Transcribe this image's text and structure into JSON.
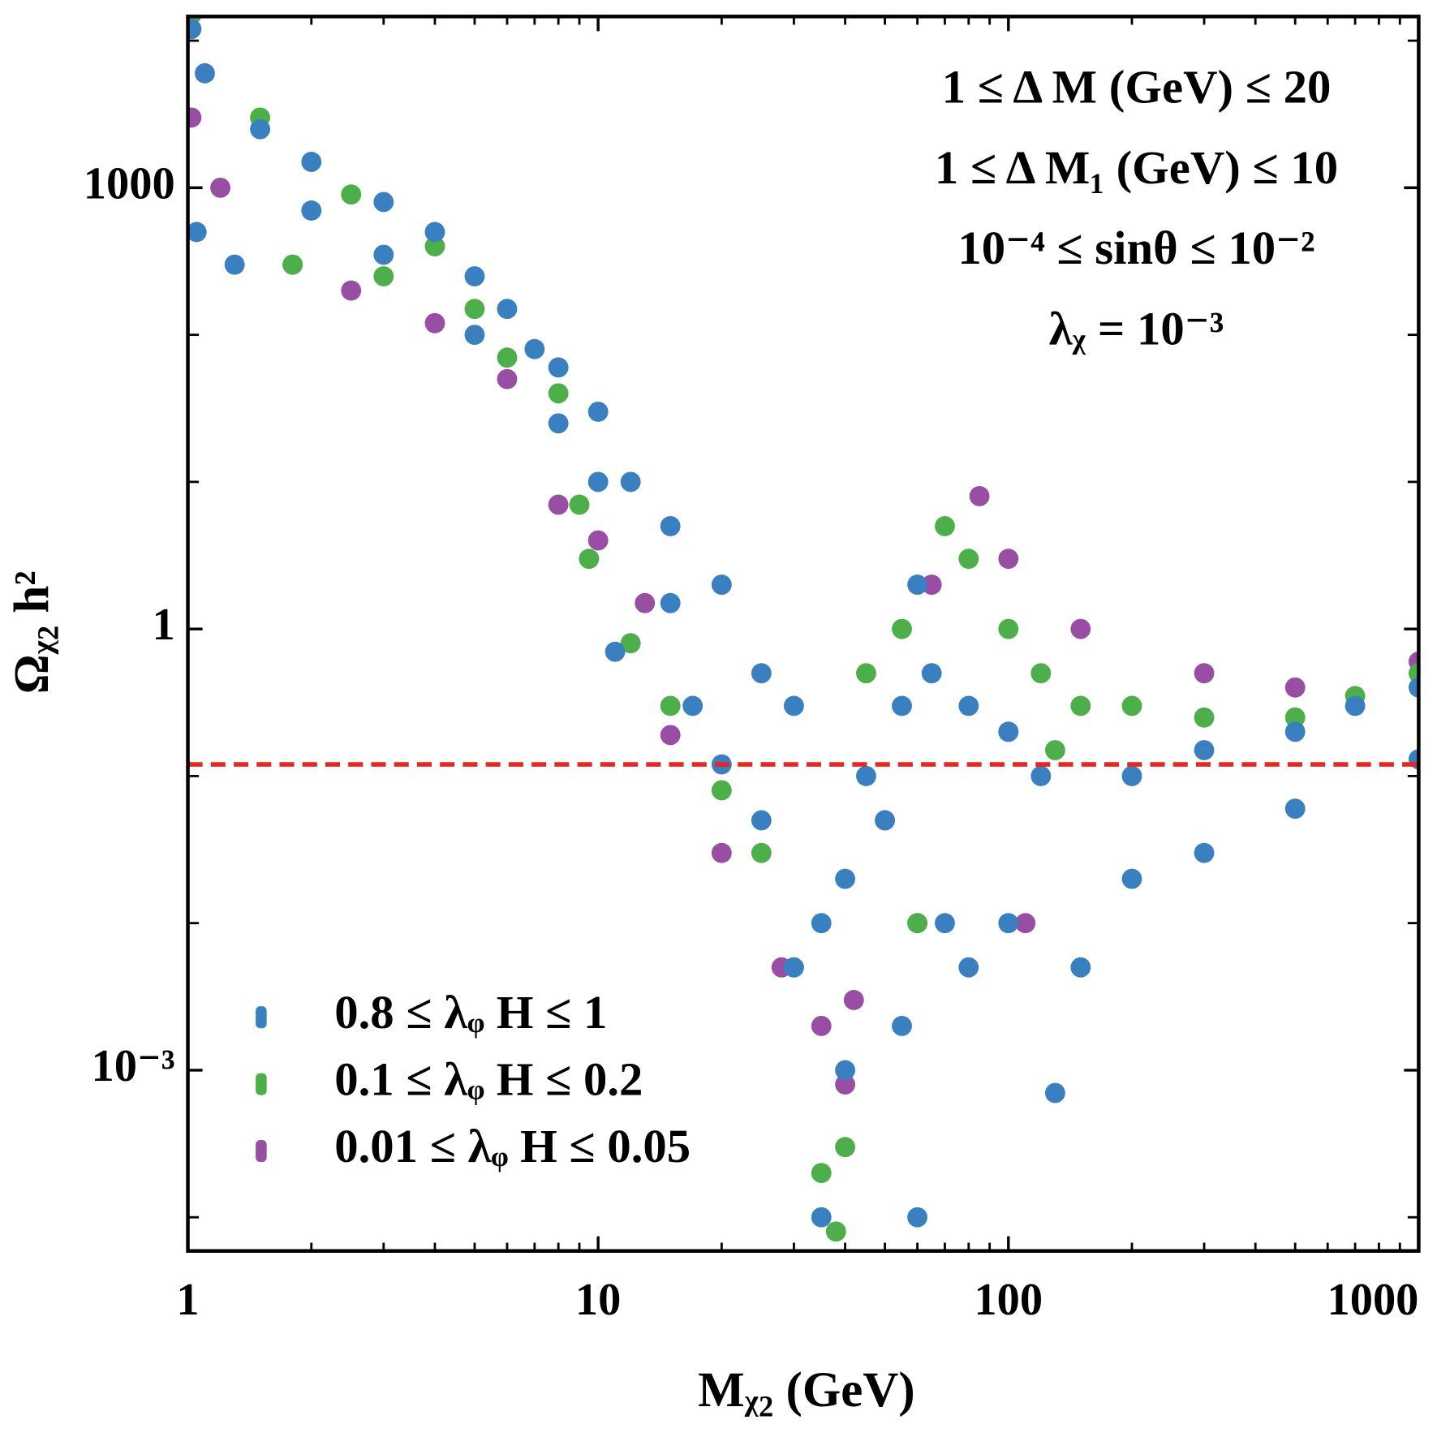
{
  "chart_data": {
    "type": "scatter",
    "xlabel": "Mᵪ₂ (GeV)",
    "ylabel": "Ωᵪ₂ h²",
    "log_x": true,
    "log_y": true,
    "xlim": [
      1,
      1000
    ],
    "ylim": [
      5.9e-05,
      14600
    ],
    "xticks": [
      1,
      10,
      100,
      1000
    ],
    "xminorticks": [
      2,
      3,
      4,
      5,
      6,
      7,
      8,
      9,
      20,
      30,
      40,
      50,
      60,
      70,
      80,
      90,
      200,
      300,
      400,
      500,
      600,
      700,
      800,
      900
    ],
    "yticks": [
      1000,
      1,
      {
        "value": 0.001,
        "label": "10⁻³"
      }
    ],
    "yminorticks": [
      0.0001,
      0.01,
      0.1,
      10,
      100,
      10000
    ],
    "legend": "lower left",
    "annotations": [
      "1 ≤ Δ M (GeV) ≤ 20",
      "1 ≤ Δ M₁ (GeV) ≤ 10",
      "10⁻⁴ ≤ sinθ ≤ 10⁻²",
      "λᵪ = 10⁻³"
    ],
    "hline": {
      "value": 0.12,
      "color": "#e8251f"
    },
    "series": [
      {
        "name": "0.8 ≤ λᵩ H ≤ 1",
        "color": "#3a7fbf",
        "x": [
          1.02,
          1.1,
          1.05,
          1.3,
          1.5,
          2,
          2,
          3,
          3,
          4,
          5,
          5,
          6,
          7,
          8,
          8,
          10,
          10,
          11,
          12,
          15,
          15,
          17,
          20,
          20,
          25,
          25,
          30,
          30,
          35,
          35,
          40,
          40,
          45,
          50,
          55,
          55,
          60,
          60,
          65,
          70,
          80,
          80,
          100,
          100,
          120,
          130,
          150,
          200,
          200,
          300,
          300,
          500,
          500,
          1000,
          1000,
          700
        ],
        "values": [
          12000,
          6000,
          500,
          300,
          2500,
          1500,
          700,
          800,
          350,
          500,
          250,
          100,
          150,
          80,
          60,
          25,
          30,
          10,
          0.7,
          10,
          5,
          1.5,
          0.3,
          2,
          0.12,
          0.5,
          0.05,
          0.3,
          0.005,
          0.01,
          0.0001,
          0.02,
          0.001,
          0.1,
          0.05,
          0.3,
          0.002,
          2,
          0.0001,
          0.5,
          0.01,
          0.3,
          0.005,
          0.2,
          0.01,
          0.1,
          0.0007,
          0.005,
          0.1,
          0.02,
          0.15,
          0.03,
          0.2,
          0.06,
          0.4,
          0.13,
          0.3
        ]
      },
      {
        "name": "0.1 ≤ λᵩ H ≤ 0.2",
        "color": "#4daf4a",
        "x": [
          1.02,
          1.5,
          1.8,
          2.5,
          3,
          4,
          5,
          6,
          8,
          9,
          9.5,
          12,
          15,
          20,
          25,
          30,
          35,
          38,
          40,
          45,
          55,
          70,
          80,
          100,
          120,
          150,
          200,
          300,
          500,
          1000,
          100,
          130,
          700,
          60
        ],
        "values": [
          15000,
          3000,
          300,
          900,
          250,
          400,
          150,
          70,
          40,
          7,
          3,
          0.8,
          0.3,
          0.08,
          0.03,
          0.005,
          0.0002,
          8e-05,
          0.0003,
          0.5,
          1,
          5,
          3,
          1,
          0.5,
          0.3,
          0.3,
          0.25,
          0.25,
          0.5,
          0.2,
          0.15,
          0.35,
          0.01
        ]
      },
      {
        "name": "0.01 ≤ λᵩ H ≤ 0.05",
        "color": "#984ea3",
        "x": [
          1.02,
          1.2,
          1.8,
          2.5,
          4,
          6,
          8,
          10,
          13,
          15,
          20,
          28,
          35,
          40,
          42,
          50,
          65,
          85,
          100,
          150,
          300,
          500,
          1000,
          110,
          60
        ],
        "values": [
          3000,
          1000,
          300,
          200,
          120,
          50,
          7,
          4,
          1.5,
          0.19,
          0.03,
          0.005,
          0.002,
          0.0008,
          0.003,
          0.05,
          2,
          8,
          3,
          1,
          0.5,
          0.4,
          0.6,
          0.01,
          0.01
        ]
      }
    ]
  }
}
